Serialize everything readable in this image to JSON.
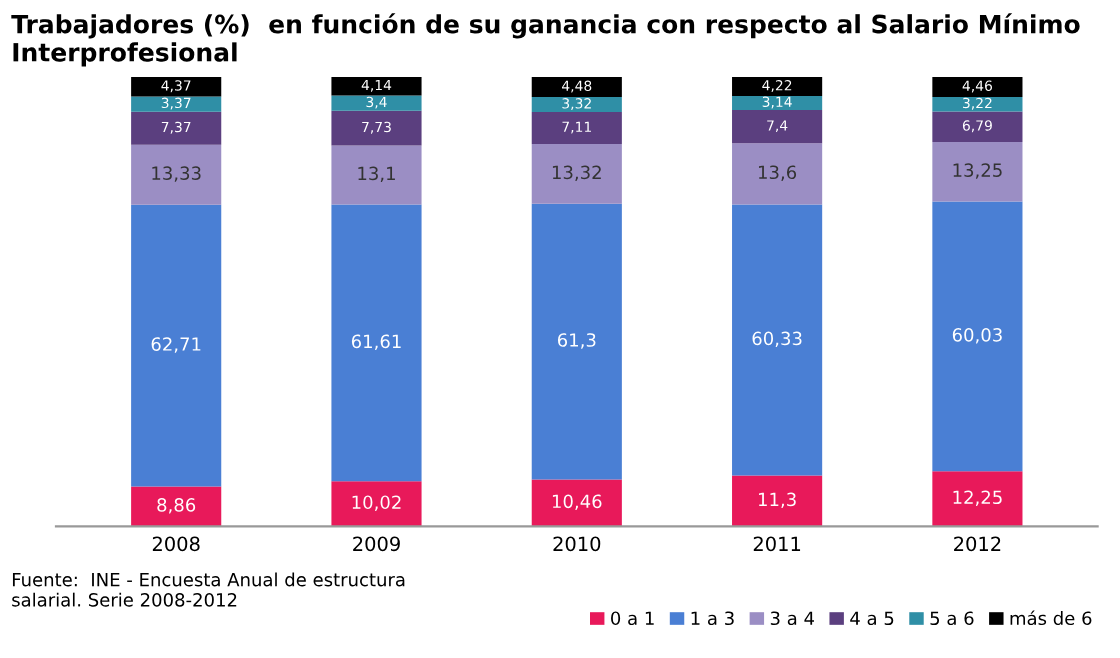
{
  "chart_data": {
    "type": "bar",
    "stacked": true,
    "title": "Trabajadores (%)  en función de su ganancia con respecto al Salario Mínimo Interprofesional",
    "categories": [
      "2008",
      "2009",
      "2010",
      "2011",
      "2012"
    ],
    "series": [
      {
        "name": "0 a 1",
        "color": "#e8195a",
        "values": [
          8.86,
          10.02,
          10.46,
          11.3,
          12.25
        ],
        "value_labels": [
          "8,86",
          "10,02",
          "10,46",
          "11,3",
          "12,25"
        ]
      },
      {
        "name": "1 a 3",
        "color": "#4a7fd4",
        "values": [
          62.71,
          61.61,
          61.3,
          60.33,
          60.03
        ],
        "value_labels": [
          "62,71",
          "61,61",
          "61,3",
          "60,33",
          "60,03"
        ]
      },
      {
        "name": "3 a 4",
        "color": "#9b8ec4",
        "values": [
          13.33,
          13.1,
          13.32,
          13.6,
          13.25
        ],
        "value_labels": [
          "13,33",
          "13,1",
          "13,32",
          "13,6",
          "13,25"
        ]
      },
      {
        "name": "4 a 5",
        "color": "#5b3f7f",
        "values": [
          7.37,
          7.73,
          7.11,
          7.4,
          6.79
        ],
        "value_labels": [
          "7,37",
          "7,73",
          "7,11",
          "7,4",
          "6,79"
        ]
      },
      {
        "name": "5 a 6",
        "color": "#2f8fa6",
        "values": [
          3.37,
          3.4,
          3.32,
          3.14,
          3.22
        ],
        "value_labels": [
          "3,37",
          "3,4",
          "3,32",
          "3,14",
          "3,22"
        ]
      },
      {
        "name": "más de 6",
        "color": "#000000",
        "values": [
          4.37,
          4.14,
          4.48,
          4.22,
          4.46
        ],
        "value_labels": [
          "4,37",
          "4,14",
          "4,48",
          "4,22",
          "4,46"
        ]
      }
    ],
    "annotations": [
      "Fuente:  INE - Encuesta Anual de estructura\nsalarial. Serie 2008-2012"
    ],
    "legend": "bottom right",
    "grid": false
  }
}
